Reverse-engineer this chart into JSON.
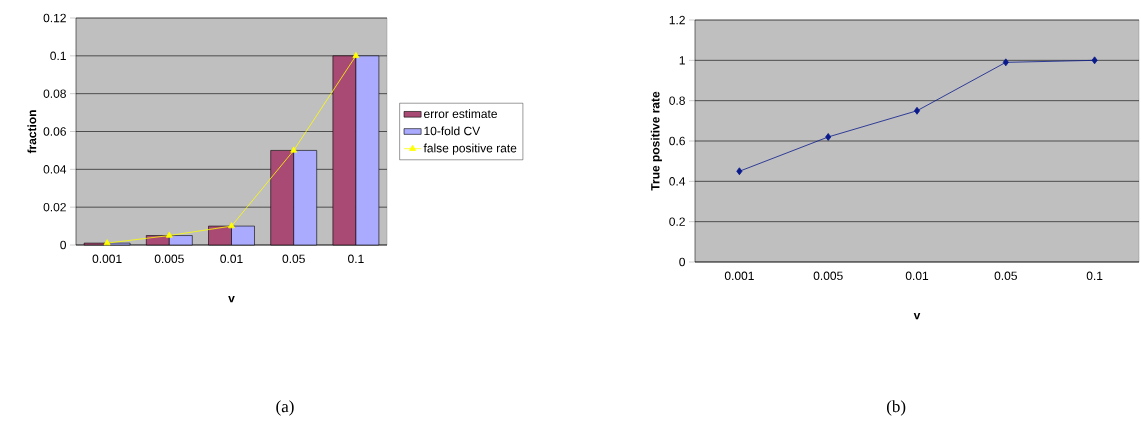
{
  "chart_data": [
    {
      "type": "bar",
      "categories": [
        "0.001",
        "0.005",
        "0.01",
        "0.05",
        "0.1"
      ],
      "xlabel": "v",
      "ylabel": "fraction",
      "ylim": [
        0,
        0.12
      ],
      "yticks": [
        0,
        0.02,
        0.04,
        0.06,
        0.08,
        0.1,
        0.12
      ],
      "grid": "y",
      "legend": "right",
      "annotations": [
        "(a)"
      ],
      "series": [
        {
          "name": "error estimate",
          "color": "#a84a74",
          "values": [
            0.001,
            0.005,
            0.01,
            0.05,
            0.1
          ]
        },
        {
          "name": "10-fold CV",
          "color": "#aaaaff",
          "values": [
            0.001,
            0.005,
            0.01,
            0.05,
            0.1
          ]
        },
        {
          "name": "false positive rate",
          "type": "line",
          "color": "#ffff00",
          "marker": "triangle",
          "values": [
            0.001,
            0.005,
            0.01,
            0.05,
            0.1
          ]
        }
      ]
    },
    {
      "type": "line",
      "categories": [
        "0.001",
        "0.005",
        "0.01",
        "0.05",
        "0.1"
      ],
      "xlabel": "v",
      "ylabel": "True positive rate",
      "ylim": [
        0,
        1.2
      ],
      "yticks": [
        0,
        0.2,
        0.4,
        0.6,
        0.8,
        1,
        1.2
      ],
      "grid": "y",
      "legend": false,
      "marker": "diamond",
      "annotations": [
        "(b)"
      ],
      "series": [
        {
          "color": "#0a1a8c",
          "values": [
            0.45,
            0.62,
            0.75,
            0.99,
            1
          ]
        }
      ]
    }
  ]
}
